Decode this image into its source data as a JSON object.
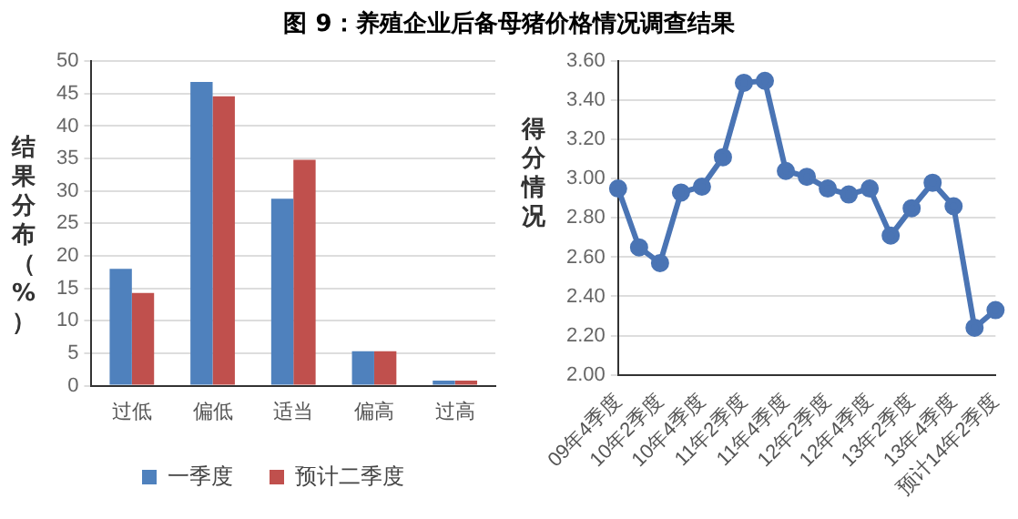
{
  "chart_data": [
    {
      "type": "bar",
      "title": "图 9：养殖企业后备母猪价格情况调查结果",
      "ylabel": "结果分布（%）",
      "categories": [
        "过低",
        "偏低",
        "适当",
        "偏高",
        "过高"
      ],
      "series": [
        {
          "name": "一季度",
          "color": "#4f81bd",
          "values": [
            18,
            46.8,
            28.8,
            5.3,
            0.8
          ]
        },
        {
          "name": "预计二季度",
          "color": "#c0504d",
          "values": [
            14.3,
            44.6,
            34.8,
            5.3,
            0.8
          ]
        }
      ],
      "ylim": [
        0,
        50
      ],
      "yticks": [
        0,
        5,
        10,
        15,
        20,
        25,
        30,
        35,
        40,
        45,
        50
      ],
      "grid": "y",
      "legend": "bottom"
    },
    {
      "type": "line",
      "ylabel": "得分情况",
      "categories": [
        "09年4季度",
        null,
        "10年2季度",
        null,
        "10年4季度",
        null,
        "11年2季度",
        null,
        "11年4季度",
        null,
        "12年2季度",
        null,
        "12年4季度",
        null,
        "13年2季度",
        null,
        "13年4季度",
        null,
        "预计14年2季度"
      ],
      "series": [
        {
          "color": "#4a74b4",
          "values": [
            2.95,
            2.65,
            2.57,
            2.93,
            2.96,
            3.11,
            3.49,
            3.5,
            3.04,
            3.01,
            2.95,
            2.92,
            2.95,
            2.71,
            2.85,
            2.98,
            2.86,
            2.24,
            2.33
          ]
        }
      ],
      "ylim": [
        2,
        3.6
      ],
      "yticks": [
        {
          "value": 2,
          "label": "2.00"
        },
        {
          "value": 2.2,
          "label": "2.20"
        },
        {
          "value": 2.4,
          "label": "2.40"
        },
        {
          "value": 2.6,
          "label": "2.60"
        },
        {
          "value": 2.8,
          "label": "2.80"
        },
        {
          "value": 3,
          "label": "3.00"
        },
        {
          "value": 3.2,
          "label": "3.20"
        },
        {
          "value": 3.4,
          "label": "3.40"
        },
        {
          "value": 3.6,
          "label": "3.60"
        }
      ],
      "grid": "y",
      "marker": "circle",
      "legend": false
    }
  ]
}
